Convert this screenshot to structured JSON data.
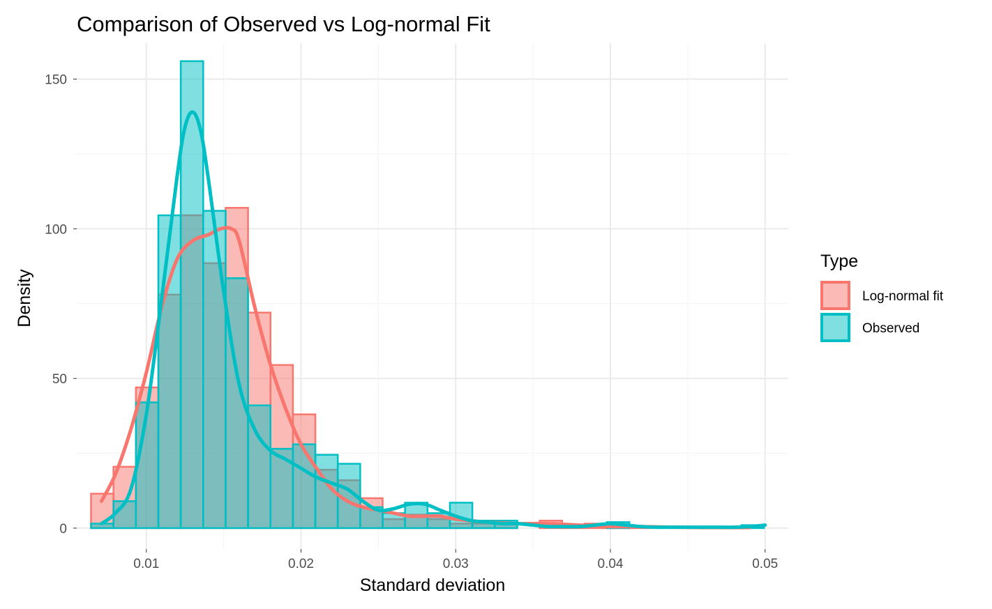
{
  "chart_data": {
    "type": "bar",
    "title": "Comparison of Observed vs Log-normal Fit",
    "xlabel": "Standard deviation",
    "ylabel": "Density",
    "xlim": [
      0.0055,
      0.0515
    ],
    "ylim": [
      -7,
      162
    ],
    "x_ticks": [
      "0.01",
      "0.02",
      "0.03",
      "0.04",
      "0.05"
    ],
    "x_tick_values": [
      0.01,
      0.02,
      0.03,
      0.04,
      0.05
    ],
    "y_ticks": [
      "0",
      "50",
      "100",
      "150"
    ],
    "y_tick_values": [
      0,
      50,
      100,
      150
    ],
    "grid": true,
    "legend": {
      "title": "Type",
      "position": "right"
    },
    "bin_width": 0.00145,
    "series": [
      {
        "name": "Log-normal fit",
        "color": "#F8766D",
        "bins": [
          {
            "x": 0.00715,
            "y": 11.5
          },
          {
            "x": 0.0086,
            "y": 20.5
          },
          {
            "x": 0.01005,
            "y": 47
          },
          {
            "x": 0.0115,
            "y": 78
          },
          {
            "x": 0.01295,
            "y": 104.5
          },
          {
            "x": 0.0144,
            "y": 88.5
          },
          {
            "x": 0.01585,
            "y": 107
          },
          {
            "x": 0.0173,
            "y": 72
          },
          {
            "x": 0.01875,
            "y": 54.5
          },
          {
            "x": 0.0202,
            "y": 38
          },
          {
            "x": 0.02165,
            "y": 19.5
          },
          {
            "x": 0.0231,
            "y": 16
          },
          {
            "x": 0.02455,
            "y": 10
          },
          {
            "x": 0.026,
            "y": 3
          },
          {
            "x": 0.02745,
            "y": 4.5
          },
          {
            "x": 0.0289,
            "y": 3
          },
          {
            "x": 0.03035,
            "y": 1.5
          },
          {
            "x": 0.0318,
            "y": 1.5
          },
          {
            "x": 0.03325,
            "y": 1.5
          },
          {
            "x": 0.0347,
            "y": 0
          },
          {
            "x": 0.03615,
            "y": 2.5
          },
          {
            "x": 0.0376,
            "y": 0.5
          },
          {
            "x": 0.03905,
            "y": 1.5
          },
          {
            "x": 0.0405,
            "y": 1
          },
          {
            "x": 0.04195,
            "y": 0.5
          },
          {
            "x": 0.0434,
            "y": 0
          },
          {
            "x": 0.04485,
            "y": 0
          },
          {
            "x": 0.0463,
            "y": 0
          },
          {
            "x": 0.04775,
            "y": 0
          },
          {
            "x": 0.0492,
            "y": 0
          }
        ],
        "density_curve": {
          "x": [
            0.0071,
            0.008,
            0.009,
            0.01,
            0.011,
            0.012,
            0.013,
            0.014,
            0.0148,
            0.0155,
            0.016,
            0.017,
            0.018,
            0.019,
            0.02,
            0.021,
            0.022,
            0.023,
            0.024,
            0.025,
            0.026,
            0.027,
            0.028,
            0.029,
            0.03,
            0.032,
            0.034,
            0.036,
            0.038,
            0.04,
            0.042,
            0.044,
            0.046,
            0.048,
            0.049
          ],
          "y": [
            9,
            18,
            33,
            52,
            74,
            90,
            96,
            98,
            100,
            100,
            96,
            74,
            55,
            40,
            28,
            20,
            13,
            9,
            7,
            6,
            5,
            4,
            4,
            4,
            3,
            2,
            1.5,
            1.5,
            1,
            0.5,
            0.5,
            0.3,
            0.2,
            0.2,
            0.2
          ]
        }
      },
      {
        "name": "Observed",
        "color": "#00BFC4",
        "bins": [
          {
            "x": 0.00715,
            "y": 1.5
          },
          {
            "x": 0.0086,
            "y": 9
          },
          {
            "x": 0.01005,
            "y": 42
          },
          {
            "x": 0.0115,
            "y": 104.5
          },
          {
            "x": 0.01295,
            "y": 156
          },
          {
            "x": 0.0144,
            "y": 106
          },
          {
            "x": 0.01585,
            "y": 83.5
          },
          {
            "x": 0.0173,
            "y": 41
          },
          {
            "x": 0.01875,
            "y": 26.5
          },
          {
            "x": 0.0202,
            "y": 28
          },
          {
            "x": 0.02165,
            "y": 24.5
          },
          {
            "x": 0.0231,
            "y": 21.5
          },
          {
            "x": 0.02455,
            "y": 7
          },
          {
            "x": 0.026,
            "y": 5
          },
          {
            "x": 0.02745,
            "y": 8.5
          },
          {
            "x": 0.0289,
            "y": 5
          },
          {
            "x": 0.03035,
            "y": 8.5
          },
          {
            "x": 0.0318,
            "y": 2.5
          },
          {
            "x": 0.03325,
            "y": 2.5
          },
          {
            "x": 0.0347,
            "y": 0
          },
          {
            "x": 0.03615,
            "y": 0
          },
          {
            "x": 0.0376,
            "y": 0
          },
          {
            "x": 0.03905,
            "y": 0
          },
          {
            "x": 0.0405,
            "y": 2
          },
          {
            "x": 0.04195,
            "y": 0
          },
          {
            "x": 0.0434,
            "y": 0
          },
          {
            "x": 0.04485,
            "y": 0
          },
          {
            "x": 0.0463,
            "y": 0
          },
          {
            "x": 0.04775,
            "y": 0
          },
          {
            "x": 0.0492,
            "y": 1
          }
        ],
        "density_curve": {
          "x": [
            0.0071,
            0.008,
            0.009,
            0.01,
            0.011,
            0.012,
            0.0125,
            0.013,
            0.0135,
            0.014,
            0.015,
            0.016,
            0.017,
            0.018,
            0.019,
            0.02,
            0.021,
            0.022,
            0.023,
            0.024,
            0.025,
            0.026,
            0.027,
            0.028,
            0.029,
            0.03,
            0.031,
            0.032,
            0.033,
            0.034,
            0.035,
            0.036,
            0.037,
            0.038,
            0.039,
            0.04,
            0.041,
            0.042,
            0.043,
            0.044,
            0.045,
            0.046,
            0.047,
            0.048,
            0.049,
            0.05
          ],
          "y": [
            1.5,
            5,
            13,
            38,
            77,
            118,
            134,
            139,
            133,
            117,
            79,
            48,
            33,
            26,
            23,
            20,
            17,
            15,
            13,
            9,
            6,
            6.5,
            8,
            8,
            6,
            4,
            2.5,
            2,
            1.5,
            1.5,
            1,
            0.5,
            0.5,
            0.5,
            1,
            1.5,
            1,
            0.5,
            0.3,
            0.3,
            0.3,
            0.3,
            0.3,
            0.3,
            0.5,
            1
          ]
        }
      }
    ]
  }
}
